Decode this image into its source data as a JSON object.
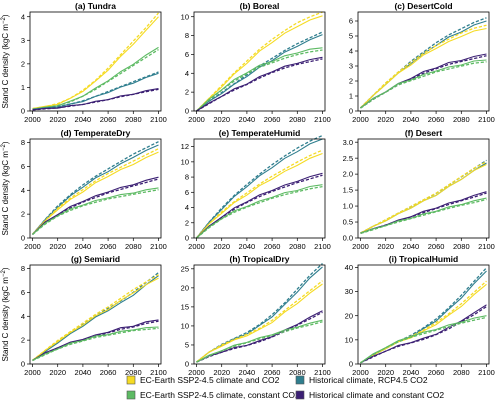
{
  "ylabel": "Stand C density (kgC m⁻²)",
  "ylabel_main": "Stand C density (kgC m",
  "ylabel_sup": "−2",
  "ylabel_end": ")",
  "chart_data": [
    {
      "type": "line",
      "title": "(a) Tundra",
      "ylim": [
        0,
        4.2
      ],
      "yticks": [
        0,
        1,
        2,
        3,
        4
      ],
      "x": [
        2000,
        2010,
        2020,
        2030,
        2040,
        2050,
        2060,
        2070,
        2080,
        2090,
        2100
      ],
      "series": [
        {
          "key": "ssp",
          "values": [
            0.1,
            0.18,
            0.3,
            0.52,
            0.85,
            1.25,
            1.75,
            2.3,
            2.85,
            3.4,
            4.0
          ]
        },
        {
          "key": "const",
          "values": [
            0.08,
            0.14,
            0.24,
            0.4,
            0.65,
            0.95,
            1.3,
            1.65,
            2.0,
            2.35,
            2.7
          ]
        },
        {
          "key": "rcp",
          "values": [
            0.06,
            0.11,
            0.18,
            0.28,
            0.42,
            0.6,
            0.8,
            1.0,
            1.2,
            1.4,
            1.6
          ]
        },
        {
          "key": "hist",
          "values": [
            0.05,
            0.09,
            0.14,
            0.21,
            0.29,
            0.39,
            0.5,
            0.62,
            0.73,
            0.84,
            0.95
          ]
        }
      ]
    },
    {
      "type": "line",
      "title": "(b) Boreal",
      "ylim": [
        0,
        10.5
      ],
      "yticks": [
        0,
        2,
        4,
        6,
        8,
        10
      ],
      "x": [
        2000,
        2010,
        2020,
        2030,
        2040,
        2050,
        2060,
        2070,
        2080,
        2090,
        2100
      ],
      "series": [
        {
          "key": "ssp",
          "values": [
            0.0,
            1.3,
            2.6,
            3.9,
            5.1,
            6.3,
            7.3,
            8.2,
            9.0,
            9.6,
            10.1
          ]
        },
        {
          "key": "rcp",
          "values": [
            0.0,
            1.0,
            1.9,
            2.8,
            3.7,
            4.6,
            5.4,
            6.2,
            6.9,
            7.5,
            8.1
          ]
        },
        {
          "key": "const",
          "values": [
            0.0,
            1.2,
            2.3,
            3.3,
            4.1,
            4.8,
            5.3,
            5.8,
            6.2,
            6.5,
            6.7
          ]
        },
        {
          "key": "hist",
          "values": [
            0.0,
            0.8,
            1.6,
            2.3,
            2.9,
            3.6,
            4.2,
            4.7,
            5.1,
            5.4,
            5.7
          ]
        }
      ]
    },
    {
      "type": "line",
      "title": "(c) DesertCold",
      "ylim": [
        0,
        6.6
      ],
      "yticks": [
        0,
        1,
        2,
        3,
        4,
        5,
        6
      ],
      "x": [
        2000,
        2010,
        2020,
        2030,
        2040,
        2050,
        2060,
        2070,
        2080,
        2090,
        2100
      ],
      "series": [
        {
          "key": "rcp",
          "values": [
            0.2,
            1.0,
            1.8,
            2.5,
            3.2,
            3.8,
            4.4,
            4.9,
            5.3,
            5.7,
            6.0
          ]
        },
        {
          "key": "ssp",
          "values": [
            0.2,
            1.0,
            1.8,
            2.5,
            3.1,
            3.7,
            4.2,
            4.6,
            5.0,
            5.3,
            5.5
          ]
        },
        {
          "key": "hist",
          "values": [
            0.2,
            0.8,
            1.3,
            1.8,
            2.2,
            2.6,
            2.9,
            3.2,
            3.4,
            3.6,
            3.8
          ]
        },
        {
          "key": "const",
          "values": [
            0.2,
            0.8,
            1.3,
            1.8,
            2.1,
            2.4,
            2.7,
            2.9,
            3.1,
            3.3,
            3.4
          ]
        }
      ]
    },
    {
      "type": "line",
      "title": "(d) TemperateDry",
      "ylim": [
        0,
        8.3
      ],
      "yticks": [
        0,
        2,
        4,
        6,
        8
      ],
      "x": [
        2000,
        2010,
        2020,
        2030,
        2040,
        2050,
        2060,
        2070,
        2080,
        2090,
        2100
      ],
      "series": [
        {
          "key": "rcp",
          "values": [
            0.3,
            1.5,
            2.6,
            3.5,
            4.3,
            5.0,
            5.6,
            6.2,
            6.8,
            7.3,
            7.8
          ]
        },
        {
          "key": "ssp",
          "values": [
            0.3,
            1.4,
            2.4,
            3.2,
            3.9,
            4.6,
            5.2,
            5.7,
            6.2,
            6.7,
            7.2
          ]
        },
        {
          "key": "hist",
          "values": [
            0.3,
            1.3,
            2.0,
            2.6,
            3.1,
            3.5,
            3.9,
            4.2,
            4.5,
            4.8,
            5.1
          ]
        },
        {
          "key": "const",
          "values": [
            0.3,
            1.2,
            1.9,
            2.4,
            2.8,
            3.1,
            3.4,
            3.6,
            3.8,
            4.0,
            4.2
          ]
        }
      ]
    },
    {
      "type": "line",
      "title": "(e) TemperateHumid",
      "ylim": [
        0,
        13
      ],
      "yticks": [
        0,
        2,
        4,
        6,
        8,
        10,
        12
      ],
      "x": [
        2000,
        2010,
        2020,
        2030,
        2040,
        2050,
        2060,
        2070,
        2080,
        2090,
        2100
      ],
      "series": [
        {
          "key": "rcp",
          "values": [
            0.0,
            2.0,
            3.8,
            5.4,
            6.8,
            8.1,
            9.3,
            10.4,
            11.4,
            12.3,
            13.0
          ]
        },
        {
          "key": "ssp",
          "values": [
            0.0,
            1.8,
            3.3,
            4.6,
            5.7,
            6.8,
            7.8,
            8.7,
            9.6,
            10.4,
            11.1
          ]
        },
        {
          "key": "hist",
          "values": [
            0.0,
            1.5,
            2.8,
            3.9,
            4.8,
            5.6,
            6.3,
            6.9,
            7.5,
            8.0,
            8.5
          ]
        },
        {
          "key": "const",
          "values": [
            0.0,
            1.4,
            2.6,
            3.5,
            4.2,
            4.8,
            5.4,
            5.9,
            6.3,
            6.7,
            7.0
          ]
        }
      ]
    },
    {
      "type": "line",
      "title": "(f) Desert",
      "ylim": [
        0,
        3.1
      ],
      "yticks": [
        0,
        0.5,
        1,
        1.5,
        2,
        2.5,
        3
      ],
      "ytick_labels": [
        "0.0",
        "0.5",
        "1.0",
        "1.5",
        "2.0",
        "2.5",
        "3.0"
      ],
      "x": [
        2000,
        2010,
        2020,
        2030,
        2040,
        2050,
        2060,
        2070,
        2080,
        2090,
        2100
      ],
      "series": [
        {
          "key": "rcp",
          "values": [
            0.15,
            0.35,
            0.55,
            0.75,
            0.95,
            1.15,
            1.35,
            1.6,
            1.85,
            2.1,
            2.35
          ]
        },
        {
          "key": "ssp",
          "values": [
            0.15,
            0.35,
            0.55,
            0.75,
            0.95,
            1.15,
            1.35,
            1.6,
            1.85,
            2.1,
            2.3
          ]
        },
        {
          "key": "hist",
          "values": [
            0.15,
            0.28,
            0.42,
            0.55,
            0.68,
            0.82,
            0.95,
            1.08,
            1.2,
            1.32,
            1.45
          ]
        },
        {
          "key": "const",
          "values": [
            0.15,
            0.27,
            0.4,
            0.52,
            0.63,
            0.74,
            0.85,
            0.96,
            1.06,
            1.15,
            1.25
          ]
        }
      ]
    },
    {
      "type": "line",
      "title": "(g) Semiarid",
      "ylim": [
        0,
        8.3
      ],
      "yticks": [
        0,
        2,
        4,
        6,
        8
      ],
      "x": [
        2000,
        2010,
        2020,
        2030,
        2040,
        2050,
        2060,
        2070,
        2080,
        2090,
        2100
      ],
      "series": [
        {
          "key": "rcp",
          "values": [
            0.3,
            1.0,
            1.8,
            2.5,
            3.2,
            3.9,
            4.5,
            5.1,
            5.8,
            6.6,
            7.4
          ]
        },
        {
          "key": "ssp",
          "values": [
            0.3,
            1.1,
            1.9,
            2.6,
            3.3,
            4.0,
            4.6,
            5.3,
            6.0,
            6.6,
            7.2
          ]
        },
        {
          "key": "hist",
          "values": [
            0.3,
            0.9,
            1.4,
            1.8,
            2.1,
            2.4,
            2.7,
            3.0,
            3.2,
            3.5,
            3.7
          ]
        },
        {
          "key": "const",
          "values": [
            0.3,
            0.8,
            1.3,
            1.7,
            2.0,
            2.3,
            2.5,
            2.7,
            2.9,
            3.0,
            3.1
          ]
        }
      ]
    },
    {
      "type": "line",
      "title": "(h) TropicalDry",
      "ylim": [
        0,
        26
      ],
      "yticks": [
        0,
        5,
        10,
        15,
        20,
        25
      ],
      "x": [
        2000,
        2010,
        2020,
        2030,
        2040,
        2050,
        2060,
        2070,
        2080,
        2090,
        2100
      ],
      "series": [
        {
          "key": "rcp",
          "values": [
            0.5,
            3.0,
            5.0,
            6.5,
            8.0,
            10.0,
            12.5,
            15.5,
            19.0,
            22.5,
            25.5
          ]
        },
        {
          "key": "ssp",
          "values": [
            0.5,
            3.0,
            4.8,
            6.2,
            7.5,
            9.0,
            11.0,
            13.5,
            16.0,
            18.5,
            21.0
          ]
        },
        {
          "key": "hist",
          "values": [
            0.5,
            2.0,
            3.2,
            4.2,
            5.0,
            6.0,
            7.3,
            8.8,
            10.5,
            12.2,
            14.0
          ]
        },
        {
          "key": "const",
          "values": [
            0.5,
            2.2,
            3.6,
            4.8,
            5.8,
            6.8,
            7.8,
            8.8,
            9.8,
            10.6,
            11.5
          ]
        }
      ]
    },
    {
      "type": "line",
      "title": "(i) TropicalHumid",
      "ylim": [
        0,
        41
      ],
      "yticks": [
        0,
        10,
        20,
        30,
        40
      ],
      "x": [
        2000,
        2010,
        2020,
        2030,
        2040,
        2050,
        2060,
        2070,
        2080,
        2090,
        2100
      ],
      "series": [
        {
          "key": "rcp",
          "values": [
            0.5,
            3.5,
            6.5,
            9.0,
            11.5,
            14.5,
            18.0,
            22.5,
            27.5,
            33.0,
            38.5
          ]
        },
        {
          "key": "ssp",
          "values": [
            0.5,
            3.5,
            6.5,
            9.0,
            11.0,
            13.5,
            16.5,
            20.0,
            24.0,
            28.5,
            33.0
          ]
        },
        {
          "key": "hist",
          "values": [
            0.5,
            3.0,
            5.5,
            7.5,
            9.0,
            10.5,
            12.5,
            15.0,
            18.0,
            21.0,
            24.5
          ]
        },
        {
          "key": "const",
          "values": [
            0.5,
            4.0,
            7.0,
            9.5,
            11.5,
            13.0,
            14.5,
            16.0,
            17.5,
            18.8,
            20.0
          ]
        }
      ]
    }
  ],
  "series_styles": {
    "ssp": {
      "color": "#F5DB24",
      "label": "EC-Earth SSP2-4.5 climate and CO2"
    },
    "const": {
      "color": "#5DBA63",
      "label": "EC-Earth SSP2-4.5 climate, constant CO2"
    },
    "rcp": {
      "color": "#2F7E8E",
      "label": "Historical climate, RCP4.5 CO2"
    },
    "hist": {
      "color": "#3B1F73",
      "label": "Historical climate and constant CO2"
    }
  },
  "xticks": [
    2000,
    2020,
    2040,
    2060,
    2080,
    2100
  ],
  "legend_order": [
    "ssp",
    "rcp",
    "const",
    "hist"
  ]
}
